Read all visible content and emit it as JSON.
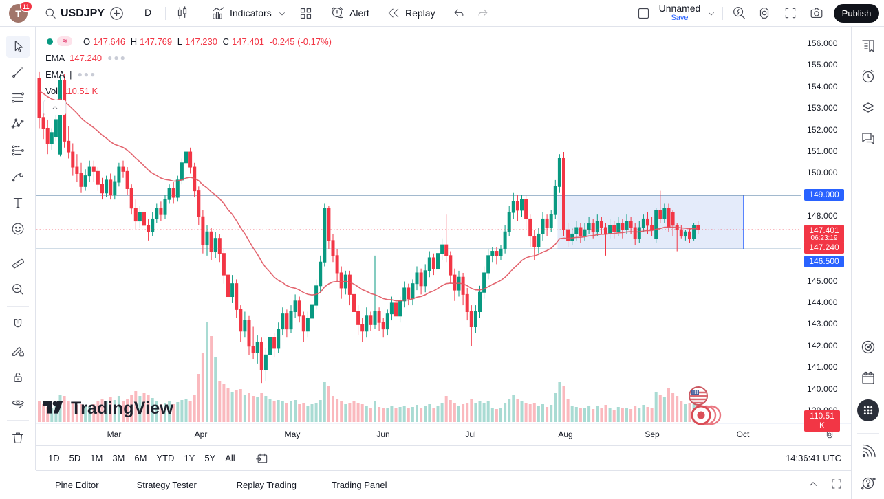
{
  "topbar": {
    "avatar_letter": "T",
    "notification_count": "11",
    "symbol": "USDJPY",
    "interval": "D",
    "indicators_label": "Indicators",
    "alert_label": "Alert",
    "replay_label": "Replay",
    "layout_name": "Unnamed",
    "save_label": "Save",
    "publish_label": "Publish",
    "icons": [
      "search-icon",
      "add-symbol-icon",
      "candlestick-style-icon",
      "indicators-icon",
      "layout-grid-icon",
      "alert-icon",
      "replay-icon",
      "undo-icon",
      "redo-icon",
      "layout-square-icon",
      "chevron-down-icon",
      "quick-search-icon",
      "settings-gear-icon",
      "fullscreen-icon",
      "camera-icon"
    ]
  },
  "left_toolbar": {
    "icons": [
      "cursor-icon",
      "trend-line-icon",
      "fib-lines-icon",
      "xabcd-pattern-icon",
      "forecast-icon",
      "brush-icon",
      "text-icon",
      "emoji-icon",
      "ruler-icon",
      "zoom-in-icon",
      "magnet-icon",
      "draw-lock-icon",
      "lock-icon",
      "hide-drawings-icon",
      "trash-icon"
    ]
  },
  "right_sidebar": {
    "icons": [
      "watchlist-icon",
      "alerts-clock-icon",
      "object-tree-icon",
      "chat-icon",
      "screener-radar-icon",
      "calendar-icon",
      "apps-grid-icon",
      "broadcast-icon",
      "help-icon"
    ]
  },
  "legend": {
    "ohlc": {
      "o_label": "O",
      "o": "147.646",
      "h_label": "H",
      "h": "147.769",
      "l_label": "L",
      "l": "147.230",
      "c_label": "C",
      "c": "147.401",
      "change": "-0.245 (-0.17%)"
    },
    "ema1_label": "EMA",
    "ema1_value": "147.240",
    "ema2_label": "EMA",
    "vol_label": "Vol",
    "vol_value": "110.51 K",
    "wave_glyph": "≈"
  },
  "watermark": {
    "brand": "TradingView"
  },
  "time_axis": {
    "months": [
      {
        "label": "Mar",
        "x": 114
      },
      {
        "label": "Apr",
        "x": 240
      },
      {
        "label": "May",
        "x": 373
      },
      {
        "label": "Jun",
        "x": 505
      },
      {
        "label": "Jul",
        "x": 632
      },
      {
        "label": "Aug",
        "x": 770
      },
      {
        "label": "Sep",
        "x": 896
      },
      {
        "label": "Oct",
        "x": 1028
      }
    ]
  },
  "timeframe_bar": {
    "buttons": [
      "1D",
      "5D",
      "1M",
      "3M",
      "6M",
      "YTD",
      "1Y",
      "5Y",
      "All"
    ],
    "clock": "14:36:41 UTC",
    "goto_date_icon": "go-to-date-icon"
  },
  "bottom_panel": {
    "tabs": [
      "Pine Editor",
      "Strategy Tester",
      "Replay Trading",
      "Trading Panel"
    ],
    "icons": [
      "collapse-panel-icon",
      "maximize-panel-icon"
    ]
  },
  "chart_data": {
    "type": "candlestick+volume",
    "symbol": "USDJPY",
    "timeframe": "D",
    "x0": 4,
    "dx": 6.1,
    "axis": {
      "p1": 156,
      "y1": 25,
      "p2": 139,
      "y2": 559
    },
    "y_ticks": [
      156,
      155,
      154,
      153,
      152,
      151,
      150,
      149,
      148,
      147,
      146,
      145,
      144,
      143,
      142,
      141,
      140,
      139
    ],
    "grid": false,
    "colors": {
      "up": "#089981",
      "down": "#f23645",
      "vol_up": "rgba(8,153,129,0.35)",
      "vol_down": "rgba(242,54,69,0.35)",
      "ema": "#e0545f",
      "level_line": "#44739e",
      "last_price_line": "#f23645",
      "badge_blue": "#2962ff",
      "badge_red": "#f23645"
    },
    "ema": {
      "period": 30,
      "seed": 153.9,
      "value": 147.24
    },
    "levels": [
      {
        "price": 149.0,
        "label": "149.000"
      },
      {
        "price": 146.5,
        "label": "146.500"
      }
    ],
    "box": {
      "start_bar": 124,
      "x_end": 1028,
      "top": 149.0,
      "bottom": 146.5,
      "fill": "rgba(84,132,224,0.16)",
      "border": "#2962ff"
    },
    "last_price": 147.401,
    "last_price_label": "147.401",
    "countdown": "06:23:19",
    "ema_badge_label": "147.240",
    "volume_badge_label": "110.51 K",
    "volume_baseline_y": 575,
    "candles": [
      [
        154.4,
        154.7,
        152.1,
        152.6,
        30
      ],
      [
        152.6,
        152.9,
        151.6,
        152.1,
        26
      ],
      [
        152.1,
        152.5,
        150.9,
        151.4,
        22
      ],
      [
        151.4,
        152.1,
        151.1,
        151.9,
        20
      ],
      [
        151.7,
        152.7,
        151.5,
        152.5,
        24
      ],
      [
        150.9,
        154.5,
        150.8,
        154.3,
        40
      ],
      [
        154.3,
        154.6,
        151.2,
        151.5,
        38
      ],
      [
        151.5,
        152.2,
        150.7,
        151.0,
        30
      ],
      [
        151.0,
        151.4,
        149.9,
        150.3,
        28
      ],
      [
        150.3,
        150.9,
        149.6,
        150.0,
        25
      ],
      [
        150.0,
        150.5,
        149.1,
        149.4,
        26
      ],
      [
        149.4,
        150.2,
        149.2,
        149.9,
        24
      ],
      [
        149.9,
        150.6,
        149.6,
        150.3,
        22
      ],
      [
        150.3,
        150.6,
        149.6,
        150.1,
        26
      ],
      [
        150.1,
        150.3,
        149.2,
        149.5,
        30
      ],
      [
        149.5,
        149.8,
        148.8,
        149.1,
        34
      ],
      [
        149.1,
        149.9,
        148.9,
        149.7,
        30
      ],
      [
        149.7,
        150.0,
        148.8,
        149.0,
        36
      ],
      [
        149.0,
        149.9,
        148.8,
        149.6,
        32
      ],
      [
        149.6,
        150.5,
        149.4,
        150.3,
        38
      ],
      [
        150.3,
        150.6,
        149.8,
        150.1,
        30
      ],
      [
        150.1,
        150.3,
        149.0,
        149.3,
        33
      ],
      [
        149.3,
        149.5,
        148.1,
        148.4,
        40
      ],
      [
        148.4,
        148.8,
        147.4,
        147.8,
        45
      ],
      [
        147.8,
        148.5,
        147.5,
        148.2,
        38
      ],
      [
        148.2,
        148.4,
        147.2,
        147.6,
        42
      ],
      [
        147.6,
        147.9,
        146.9,
        147.3,
        40
      ],
      [
        147.3,
        148.2,
        147.1,
        147.9,
        35
      ],
      [
        147.9,
        148.6,
        147.7,
        148.4,
        30
      ],
      [
        148.4,
        148.7,
        147.8,
        148.1,
        26
      ],
      [
        148.1,
        149.0,
        147.9,
        148.8,
        28
      ],
      [
        148.8,
        149.5,
        148.6,
        149.3,
        30
      ],
      [
        149.3,
        149.6,
        148.6,
        148.9,
        26
      ],
      [
        148.9,
        149.9,
        148.7,
        149.7,
        29
      ],
      [
        149.7,
        150.7,
        149.5,
        150.5,
        32
      ],
      [
        150.5,
        151.2,
        150.2,
        151.0,
        34
      ],
      [
        151.0,
        151.2,
        150.0,
        150.3,
        30
      ],
      [
        150.3,
        150.5,
        148.9,
        149.2,
        40
      ],
      [
        149.2,
        149.4,
        147.6,
        148.0,
        70
      ],
      [
        148.0,
        148.3,
        146.3,
        146.7,
        100
      ],
      [
        146.7,
        147.6,
        146.2,
        147.3,
        145
      ],
      [
        147.3,
        147.5,
        146.0,
        146.4,
        125
      ],
      [
        146.4,
        147.3,
        146.1,
        147.0,
        95
      ],
      [
        147.0,
        147.2,
        145.9,
        146.3,
        60
      ],
      [
        146.3,
        146.5,
        144.9,
        145.3,
        55
      ],
      [
        145.3,
        145.6,
        143.9,
        144.3,
        50
      ],
      [
        144.3,
        145.3,
        144.0,
        144.9,
        44
      ],
      [
        144.9,
        145.1,
        143.3,
        143.7,
        46
      ],
      [
        143.7,
        143.9,
        142.2,
        142.7,
        48
      ],
      [
        142.7,
        143.6,
        142.4,
        143.2,
        40
      ],
      [
        143.2,
        143.4,
        141.6,
        142.0,
        42
      ],
      [
        142.0,
        142.9,
        141.4,
        141.7,
        38
      ],
      [
        141.7,
        142.5,
        141.2,
        142.2,
        36
      ],
      [
        142.2,
        142.4,
        140.3,
        140.9,
        42
      ],
      [
        140.9,
        141.9,
        140.4,
        141.6,
        38
      ],
      [
        141.6,
        142.7,
        141.3,
        142.4,
        34
      ],
      [
        142.4,
        142.6,
        141.5,
        141.9,
        30
      ],
      [
        141.9,
        143.1,
        141.7,
        142.8,
        32
      ],
      [
        142.8,
        143.8,
        142.5,
        143.5,
        30
      ],
      [
        143.5,
        143.7,
        142.4,
        142.8,
        28
      ],
      [
        142.8,
        143.9,
        142.6,
        143.6,
        30
      ],
      [
        143.6,
        144.4,
        143.3,
        144.1,
        32
      ],
      [
        144.1,
        144.3,
        143.1,
        143.4,
        26
      ],
      [
        143.4,
        143.6,
        142.2,
        142.7,
        28
      ],
      [
        142.7,
        143.6,
        142.4,
        143.3,
        24
      ],
      [
        143.3,
        144.2,
        143.0,
        143.9,
        26
      ],
      [
        143.9,
        145.1,
        143.7,
        144.8,
        28
      ],
      [
        144.8,
        146.2,
        144.5,
        145.9,
        32
      ],
      [
        145.9,
        148.6,
        145.7,
        148.4,
        58
      ],
      [
        148.4,
        148.5,
        146.5,
        146.9,
        52
      ],
      [
        146.9,
        147.2,
        145.9,
        146.2,
        38
      ],
      [
        146.2,
        146.5,
        145.0,
        145.4,
        34
      ],
      [
        145.4,
        145.7,
        144.2,
        144.7,
        30
      ],
      [
        144.7,
        145.5,
        144.4,
        145.3,
        26
      ],
      [
        145.3,
        145.5,
        143.9,
        144.4,
        28
      ],
      [
        144.4,
        144.7,
        143.1,
        143.6,
        30
      ],
      [
        143.6,
        143.9,
        142.5,
        143.0,
        28
      ],
      [
        143.0,
        143.3,
        142.2,
        142.7,
        26
      ],
      [
        142.7,
        143.8,
        142.4,
        143.4,
        24
      ],
      [
        143.4,
        143.6,
        142.7,
        143.0,
        20
      ],
      [
        143.0,
        146.2,
        142.8,
        143.6,
        30
      ],
      [
        143.6,
        143.8,
        142.7,
        143.1,
        22
      ],
      [
        143.1,
        143.3,
        142.4,
        142.8,
        20
      ],
      [
        142.8,
        143.7,
        142.5,
        143.5,
        21
      ],
      [
        143.5,
        144.3,
        143.2,
        144.0,
        23
      ],
      [
        144.0,
        144.2,
        143.2,
        143.4,
        20
      ],
      [
        143.4,
        144.3,
        143.1,
        144.1,
        22
      ],
      [
        144.1,
        145.0,
        143.8,
        144.7,
        24
      ],
      [
        144.7,
        144.9,
        143.9,
        144.2,
        20
      ],
      [
        144.2,
        145.1,
        143.9,
        144.9,
        22
      ],
      [
        144.9,
        145.7,
        144.6,
        145.4,
        25
      ],
      [
        145.4,
        145.6,
        144.4,
        144.8,
        21
      ],
      [
        144.8,
        145.8,
        144.5,
        145.5,
        23
      ],
      [
        145.5,
        146.4,
        145.2,
        146.1,
        26
      ],
      [
        146.1,
        146.3,
        145.3,
        145.6,
        21
      ],
      [
        145.6,
        146.6,
        145.3,
        146.3,
        24
      ],
      [
        146.3,
        147.0,
        146.0,
        146.7,
        27
      ],
      [
        146.7,
        148.1,
        145.9,
        146.2,
        38
      ],
      [
        146.2,
        146.4,
        144.9,
        145.3,
        32
      ],
      [
        145.3,
        145.6,
        144.1,
        144.6,
        28
      ],
      [
        144.6,
        145.5,
        144.3,
        145.2,
        24
      ],
      [
        145.2,
        145.4,
        143.9,
        144.4,
        26
      ],
      [
        144.4,
        144.7,
        143.2,
        143.6,
        28
      ],
      [
        143.6,
        143.9,
        142.0,
        142.9,
        34
      ],
      [
        142.9,
        143.9,
        142.6,
        143.6,
        28
      ],
      [
        143.6,
        144.8,
        143.3,
        144.5,
        30
      ],
      [
        144.5,
        145.7,
        144.2,
        145.4,
        28
      ],
      [
        145.4,
        146.5,
        145.1,
        146.2,
        31
      ],
      [
        146.2,
        146.6,
        145.9,
        146.4,
        21
      ],
      [
        146.4,
        146.6,
        145.8,
        146.2,
        19
      ],
      [
        146.2,
        146.7,
        146.0,
        146.5,
        20
      ],
      [
        146.5,
        147.6,
        146.3,
        147.3,
        28
      ],
      [
        147.3,
        148.5,
        147.1,
        148.2,
        34
      ],
      [
        148.2,
        149.1,
        147.9,
        148.7,
        40
      ],
      [
        148.7,
        149.0,
        147.8,
        148.3,
        33
      ],
      [
        148.3,
        149.0,
        148.0,
        148.8,
        31
      ],
      [
        148.8,
        149.0,
        147.4,
        147.9,
        28
      ],
      [
        147.9,
        148.1,
        146.6,
        147.1,
        26
      ],
      [
        147.1,
        147.4,
        146.0,
        146.6,
        28
      ],
      [
        146.6,
        147.5,
        146.3,
        147.2,
        24
      ],
      [
        147.2,
        148.2,
        146.9,
        147.9,
        26
      ],
      [
        147.9,
        148.1,
        147.1,
        147.5,
        22
      ],
      [
        147.5,
        148.3,
        147.3,
        148.1,
        25
      ],
      [
        148.1,
        149.7,
        147.9,
        149.4,
        42
      ],
      [
        149.4,
        150.9,
        149.1,
        150.7,
        58
      ],
      [
        150.7,
        151.0,
        147.1,
        147.4,
        52
      ],
      [
        147.4,
        147.7,
        146.6,
        146.9,
        33
      ],
      [
        146.9,
        147.5,
        146.7,
        147.2,
        24
      ],
      [
        147.2,
        147.8,
        146.9,
        147.5,
        22
      ],
      [
        147.5,
        147.7,
        146.8,
        147.1,
        21
      ],
      [
        147.1,
        147.7,
        146.9,
        147.4,
        20
      ],
      [
        147.4,
        148.0,
        147.2,
        147.7,
        23
      ],
      [
        147.7,
        147.9,
        147.0,
        147.3,
        19
      ],
      [
        147.3,
        148.1,
        147.1,
        147.8,
        24
      ],
      [
        147.8,
        148.0,
        147.2,
        147.5,
        20
      ],
      [
        147.5,
        147.7,
        146.2,
        147.2,
        25
      ],
      [
        147.2,
        147.9,
        147.0,
        147.6,
        21
      ],
      [
        147.6,
        147.8,
        147.0,
        147.3,
        18
      ],
      [
        147.3,
        148.0,
        147.1,
        147.7,
        22
      ],
      [
        147.7,
        147.9,
        147.0,
        147.4,
        20
      ],
      [
        147.4,
        148.1,
        147.2,
        147.8,
        21
      ],
      [
        147.8,
        148.0,
        147.2,
        147.5,
        19
      ],
      [
        147.5,
        147.7,
        146.7,
        147.0,
        23
      ],
      [
        147.0,
        147.8,
        146.8,
        147.5,
        21
      ],
      [
        147.5,
        148.1,
        147.3,
        147.9,
        25
      ],
      [
        147.9,
        148.2,
        147.2,
        147.6,
        22
      ],
      [
        147.6,
        148.0,
        147.1,
        147.4,
        20
      ],
      [
        147.0,
        148.4,
        146.8,
        148.3,
        44
      ],
      [
        148.3,
        149.2,
        147.7,
        147.9,
        40
      ],
      [
        147.9,
        148.6,
        147.7,
        148.4,
        36
      ],
      [
        148.4,
        148.6,
        147.3,
        147.5,
        50
      ],
      [
        148.2,
        148.3,
        147.1,
        147.6,
        42
      ],
      [
        147.6,
        147.7,
        146.4,
        147.4,
        38
      ],
      [
        147.4,
        147.6,
        147.0,
        147.1,
        30
      ],
      [
        147.1,
        147.4,
        146.9,
        147.3,
        26
      ],
      [
        147.3,
        147.5,
        146.8,
        147.0,
        28
      ],
      [
        147.0,
        147.7,
        146.9,
        147.6,
        40
      ],
      [
        147.6,
        147.8,
        147.2,
        147.4,
        30
      ]
    ]
  }
}
